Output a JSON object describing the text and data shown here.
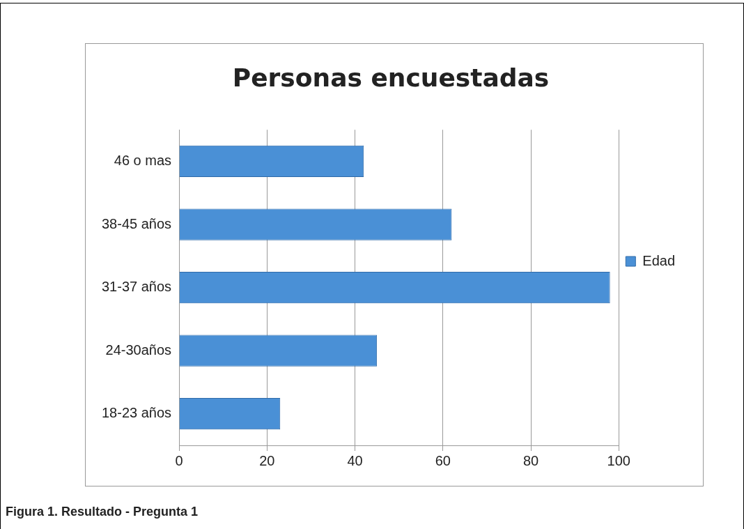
{
  "chart_data": {
    "type": "bar",
    "orientation": "horizontal",
    "title": "Personas encuestadas",
    "categories": [
      "46 o mas",
      "38-45 años",
      "31-37 años",
      "24-30años",
      "18-23 años"
    ],
    "series": [
      {
        "name": "Edad",
        "color": "#4a90d6",
        "values": [
          42,
          62,
          98,
          45,
          23
        ]
      }
    ],
    "xlim": [
      0,
      100
    ],
    "xticks": [
      0,
      20,
      40,
      60,
      80,
      100
    ],
    "grid": "x",
    "legend": "right",
    "annotations": [
      "Figura 1.  Resultado - Pregunta 1"
    ]
  }
}
